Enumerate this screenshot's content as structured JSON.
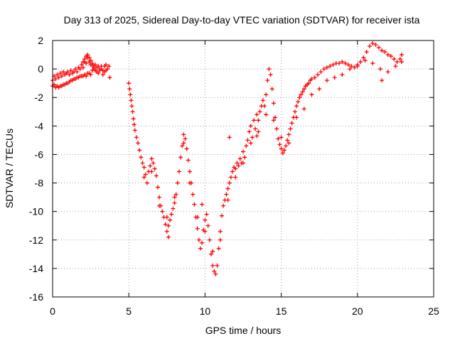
{
  "chart_data": {
    "type": "scatter",
    "title": "Day 313 of 2025, Sidereal Day-to-day VTEC variation (SDTVAR) for receiver ista",
    "xlabel": "GPS time / hours",
    "ylabel": "SDTVAR / TECUs",
    "xlim": [
      0,
      25
    ],
    "ylim": [
      -16,
      2
    ],
    "xticks": [
      0,
      5,
      10,
      15,
      20,
      25
    ],
    "yticks": [
      -16,
      -14,
      -12,
      -10,
      -8,
      -6,
      -4,
      -2,
      0,
      2
    ],
    "grid": true,
    "marker": "+",
    "colors": {
      "series": "#ff0000",
      "grid": "#a0a0a0",
      "axis": "#000000"
    },
    "series": [
      {
        "name": "SDTVAR",
        "points": [
          [
            0.0,
            -0.8
          ],
          [
            0.1,
            -0.5
          ],
          [
            0.2,
            -0.7
          ],
          [
            0.3,
            -0.4
          ],
          [
            0.4,
            -0.6
          ],
          [
            0.5,
            -0.3
          ],
          [
            0.6,
            -0.5
          ],
          [
            0.7,
            -0.2
          ],
          [
            0.8,
            -0.4
          ],
          [
            0.9,
            -0.3
          ],
          [
            1.0,
            -0.2
          ],
          [
            1.1,
            -0.4
          ],
          [
            1.2,
            -0.1
          ],
          [
            1.3,
            -0.3
          ],
          [
            1.4,
            -0.2
          ],
          [
            1.5,
            0.0
          ],
          [
            1.6,
            -0.2
          ],
          [
            1.7,
            0.1
          ],
          [
            1.8,
            0.0
          ],
          [
            1.9,
            0.3
          ],
          [
            2.0,
            0.1
          ],
          [
            2.1,
            0.5
          ],
          [
            2.2,
            0.4
          ],
          [
            2.3,
            0.8
          ],
          [
            2.4,
            0.5
          ],
          [
            2.5,
            0.3
          ],
          [
            2.6,
            0.4
          ],
          [
            2.7,
            0.2
          ],
          [
            2.8,
            0.3
          ],
          [
            2.9,
            0.1
          ],
          [
            3.0,
            0.2
          ],
          [
            3.1,
            0.0
          ],
          [
            3.2,
            0.2
          ],
          [
            3.3,
            -0.1
          ],
          [
            3.4,
            0.2
          ],
          [
            3.5,
            0.3
          ],
          [
            3.6,
            0.0
          ],
          [
            3.7,
            0.2
          ],
          [
            3.75,
            -0.6
          ],
          [
            0.0,
            -1.2
          ],
          [
            0.1,
            -1.1
          ],
          [
            0.2,
            -1.3
          ],
          [
            0.3,
            -1.2
          ],
          [
            0.4,
            -1.3
          ],
          [
            0.5,
            -1.2
          ],
          [
            0.6,
            -1.2
          ],
          [
            0.7,
            -1.1
          ],
          [
            0.8,
            -1.1
          ],
          [
            0.9,
            -1.0
          ],
          [
            1.0,
            -1.0
          ],
          [
            1.1,
            -0.9
          ],
          [
            1.2,
            -0.8
          ],
          [
            1.3,
            -0.8
          ],
          [
            1.4,
            -0.7
          ],
          [
            1.5,
            -0.7
          ],
          [
            1.6,
            -0.6
          ],
          [
            1.7,
            -0.6
          ],
          [
            1.8,
            -0.5
          ],
          [
            1.9,
            -0.5
          ],
          [
            2.0,
            -0.5
          ],
          [
            2.1,
            -0.4
          ],
          [
            2.2,
            -0.5
          ],
          [
            2.3,
            -0.3
          ],
          [
            2.4,
            -0.3
          ],
          [
            2.5,
            -0.4
          ],
          [
            2.6,
            -0.1
          ],
          [
            2.7,
            0.0
          ],
          [
            2.8,
            -0.1
          ],
          [
            2.9,
            -0.2
          ],
          [
            3.0,
            -0.3
          ],
          [
            3.1,
            -0.1
          ],
          [
            3.2,
            0.0
          ],
          [
            3.3,
            -0.4
          ],
          [
            3.4,
            -0.2
          ],
          [
            3.5,
            -0.1
          ],
          [
            2.0,
            0.5
          ],
          [
            2.1,
            0.7
          ],
          [
            2.2,
            0.9
          ],
          [
            2.3,
            1.0
          ],
          [
            2.4,
            0.8
          ],
          [
            2.5,
            0.6
          ],
          [
            2.6,
            0.3
          ],
          [
            2.7,
            0.1
          ],
          [
            5.0,
            -1.0
          ],
          [
            5.05,
            -1.4
          ],
          [
            5.1,
            -1.8
          ],
          [
            5.15,
            -2.2
          ],
          [
            5.2,
            -2.6
          ],
          [
            5.25,
            -3.0
          ],
          [
            5.3,
            -3.5
          ],
          [
            5.35,
            -3.9
          ],
          [
            5.4,
            -4.3
          ],
          [
            5.5,
            -4.8
          ],
          [
            5.6,
            -5.2
          ],
          [
            5.7,
            -5.7
          ],
          [
            5.8,
            -6.2
          ],
          [
            5.9,
            -6.6
          ],
          [
            6.0,
            -6.9
          ],
          [
            6.1,
            -7.4
          ],
          [
            6.2,
            -8.0
          ],
          [
            6.3,
            -7.2
          ],
          [
            6.4,
            -6.8
          ],
          [
            6.5,
            -6.3
          ],
          [
            6.6,
            -6.6
          ],
          [
            6.7,
            -7.0
          ],
          [
            6.8,
            -7.5
          ],
          [
            6.9,
            -8.3
          ],
          [
            7.0,
            -9.0
          ],
          [
            7.1,
            -9.6
          ],
          [
            7.2,
            -10.0
          ],
          [
            7.3,
            -10.4
          ],
          [
            7.4,
            -10.9
          ],
          [
            7.5,
            -11.4
          ],
          [
            7.6,
            -11.0
          ],
          [
            7.7,
            -10.6
          ],
          [
            7.8,
            -10.2
          ],
          [
            7.9,
            -9.8
          ],
          [
            8.0,
            -9.4
          ],
          [
            8.1,
            -8.8
          ],
          [
            8.2,
            -8.0
          ],
          [
            8.3,
            -7.2
          ],
          [
            8.4,
            -6.2
          ],
          [
            8.5,
            -5.4
          ],
          [
            8.6,
            -4.6
          ],
          [
            8.7,
            -4.9
          ],
          [
            8.8,
            -5.6
          ],
          [
            8.9,
            -6.4
          ],
          [
            9.0,
            -7.2
          ],
          [
            9.1,
            -8.0
          ],
          [
            9.2,
            -8.8
          ],
          [
            9.3,
            -9.5
          ],
          [
            9.4,
            -10.4
          ],
          [
            9.5,
            -11.2
          ],
          [
            9.6,
            -12.0
          ],
          [
            9.7,
            -12.6
          ],
          [
            9.8,
            -12.2
          ],
          [
            9.9,
            -11.3
          ],
          [
            10.0,
            -10.6
          ],
          [
            10.1,
            -10.2
          ],
          [
            10.2,
            -11.0
          ],
          [
            10.3,
            -12.0
          ],
          [
            10.4,
            -13.0
          ],
          [
            10.5,
            -13.8
          ],
          [
            10.6,
            -14.2
          ],
          [
            10.7,
            -14.4
          ],
          [
            10.8,
            -13.8
          ],
          [
            10.9,
            -12.6
          ],
          [
            11.0,
            -11.4
          ],
          [
            11.1,
            -10.3
          ],
          [
            11.2,
            -9.6
          ],
          [
            11.3,
            -9.2
          ],
          [
            11.4,
            -8.8
          ],
          [
            11.5,
            -8.4
          ],
          [
            11.6,
            -8.0
          ],
          [
            11.7,
            -7.6
          ],
          [
            11.8,
            -7.2
          ],
          [
            11.9,
            -6.9
          ],
          [
            12.0,
            -7.0
          ],
          [
            12.1,
            -6.6
          ],
          [
            12.2,
            -6.8
          ],
          [
            12.3,
            -6.3
          ],
          [
            12.4,
            -6.6
          ],
          [
            12.5,
            -5.8
          ],
          [
            12.6,
            -6.2
          ],
          [
            12.7,
            -5.4
          ],
          [
            12.8,
            -5.0
          ],
          [
            12.9,
            -4.4
          ],
          [
            13.0,
            -4.0
          ],
          [
            13.1,
            -4.8
          ],
          [
            13.2,
            -3.6
          ],
          [
            13.3,
            -4.2
          ],
          [
            13.4,
            -3.2
          ],
          [
            13.5,
            -3.6
          ],
          [
            13.6,
            -3.0
          ],
          [
            13.7,
            -2.6
          ],
          [
            13.8,
            -2.2
          ],
          [
            13.9,
            -2.6
          ],
          [
            14.0,
            -1.8
          ],
          [
            14.1,
            -0.8
          ],
          [
            14.2,
            0.0
          ],
          [
            14.3,
            -0.4
          ],
          [
            14.4,
            -1.4
          ],
          [
            14.5,
            -2.4
          ],
          [
            14.6,
            -3.4
          ],
          [
            14.7,
            -4.2
          ],
          [
            14.8,
            -4.9
          ],
          [
            14.9,
            -5.3
          ],
          [
            15.0,
            -5.6
          ],
          [
            15.1,
            -5.9
          ],
          [
            15.2,
            -5.7
          ],
          [
            15.3,
            -5.4
          ],
          [
            15.4,
            -5.0
          ],
          [
            15.5,
            -4.6
          ],
          [
            15.6,
            -4.2
          ],
          [
            15.7,
            -3.8
          ],
          [
            15.8,
            -3.4
          ],
          [
            15.9,
            -3.0
          ],
          [
            16.0,
            -2.6
          ],
          [
            16.1,
            -2.3
          ],
          [
            16.2,
            -2.0
          ],
          [
            16.3,
            -1.8
          ],
          [
            16.4,
            -1.6
          ],
          [
            16.5,
            -1.4
          ],
          [
            16.6,
            -1.2
          ],
          [
            16.7,
            -1.1
          ],
          [
            16.8,
            -1.0
          ],
          [
            16.9,
            -0.8
          ],
          [
            17.0,
            -0.7
          ],
          [
            17.2,
            -0.6
          ],
          [
            17.4,
            -0.4
          ],
          [
            17.6,
            -0.2
          ],
          [
            17.8,
            0.0
          ],
          [
            18.0,
            0.1
          ],
          [
            18.2,
            0.2
          ],
          [
            18.4,
            0.3
          ],
          [
            18.6,
            0.4
          ],
          [
            18.8,
            0.4
          ],
          [
            19.0,
            0.5
          ],
          [
            19.2,
            0.4
          ],
          [
            19.4,
            0.3
          ],
          [
            19.6,
            0.2
          ],
          [
            19.8,
            0.1
          ],
          [
            20.0,
            0.3
          ],
          [
            20.2,
            0.5
          ],
          [
            20.4,
            0.8
          ],
          [
            20.6,
            1.2
          ],
          [
            20.8,
            1.6
          ],
          [
            21.0,
            1.8
          ],
          [
            21.2,
            1.7
          ],
          [
            21.4,
            1.5
          ],
          [
            21.6,
            1.3
          ],
          [
            21.8,
            1.2
          ],
          [
            22.0,
            1.0
          ],
          [
            22.2,
            0.9
          ],
          [
            22.4,
            0.7
          ],
          [
            22.6,
            0.5
          ],
          [
            22.8,
            0.7
          ],
          [
            22.9,
            1.0
          ],
          [
            6.0,
            -7.6
          ],
          [
            6.5,
            -7.2
          ],
          [
            7.0,
            -9.6
          ],
          [
            7.5,
            -10.4
          ],
          [
            8.0,
            -9.0
          ],
          [
            8.6,
            -5.2
          ],
          [
            9.0,
            -8.0
          ],
          [
            9.5,
            -10.4
          ],
          [
            10.0,
            -11.4
          ],
          [
            10.5,
            -12.8
          ],
          [
            11.0,
            -12.0
          ],
          [
            11.5,
            -9.2
          ],
          [
            12.0,
            -7.6
          ],
          [
            12.5,
            -6.6
          ],
          [
            13.0,
            -5.2
          ],
          [
            13.5,
            -4.4
          ],
          [
            14.0,
            -3.2
          ],
          [
            14.5,
            -3.6
          ],
          [
            15.0,
            -4.8
          ],
          [
            15.5,
            -5.2
          ],
          [
            16.0,
            -3.4
          ],
          [
            16.5,
            -2.8
          ],
          [
            17.0,
            -1.8
          ],
          [
            17.5,
            -1.4
          ],
          [
            18.0,
            -0.8
          ],
          [
            18.5,
            -0.6
          ],
          [
            19.0,
            -0.4
          ],
          [
            19.5,
            0.0
          ],
          [
            20.0,
            0.2
          ],
          [
            20.5,
            0.6
          ],
          [
            21.0,
            0.4
          ],
          [
            21.5,
            0.0
          ],
          [
            22.0,
            -0.2
          ],
          [
            22.5,
            0.2
          ],
          [
            22.9,
            0.5
          ],
          [
            21.6,
            -0.8
          ],
          [
            13.4,
            -4.7
          ],
          [
            11.6,
            -4.8
          ],
          [
            9.8,
            -9.5
          ],
          [
            7.6,
            -11.8
          ]
        ]
      }
    ]
  }
}
